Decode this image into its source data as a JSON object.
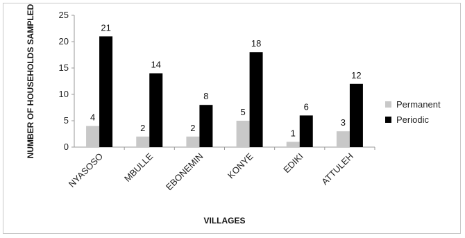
{
  "chart_data": {
    "type": "bar",
    "title": "",
    "xlabel": "VILLAGES",
    "ylabel": "NUMBER OF HOUSEHOLDS SAMPLED",
    "categories": [
      "NYASOSO",
      "MBULLE",
      "EBONEMIN",
      "KONYE",
      "EDIKI",
      "ATTULEH"
    ],
    "series": [
      {
        "name": "Permanent",
        "values": [
          4,
          2,
          2,
          5,
          1,
          3
        ],
        "color": "#c8c8c8"
      },
      {
        "name": "Periodic",
        "values": [
          21,
          14,
          8,
          18,
          6,
          12
        ],
        "color": "#000000"
      }
    ],
    "ylim": [
      0,
      25
    ],
    "yticks": [
      "0",
      "5",
      "10",
      "15",
      "20",
      "25"
    ],
    "grid": false,
    "legend_position": "right"
  }
}
